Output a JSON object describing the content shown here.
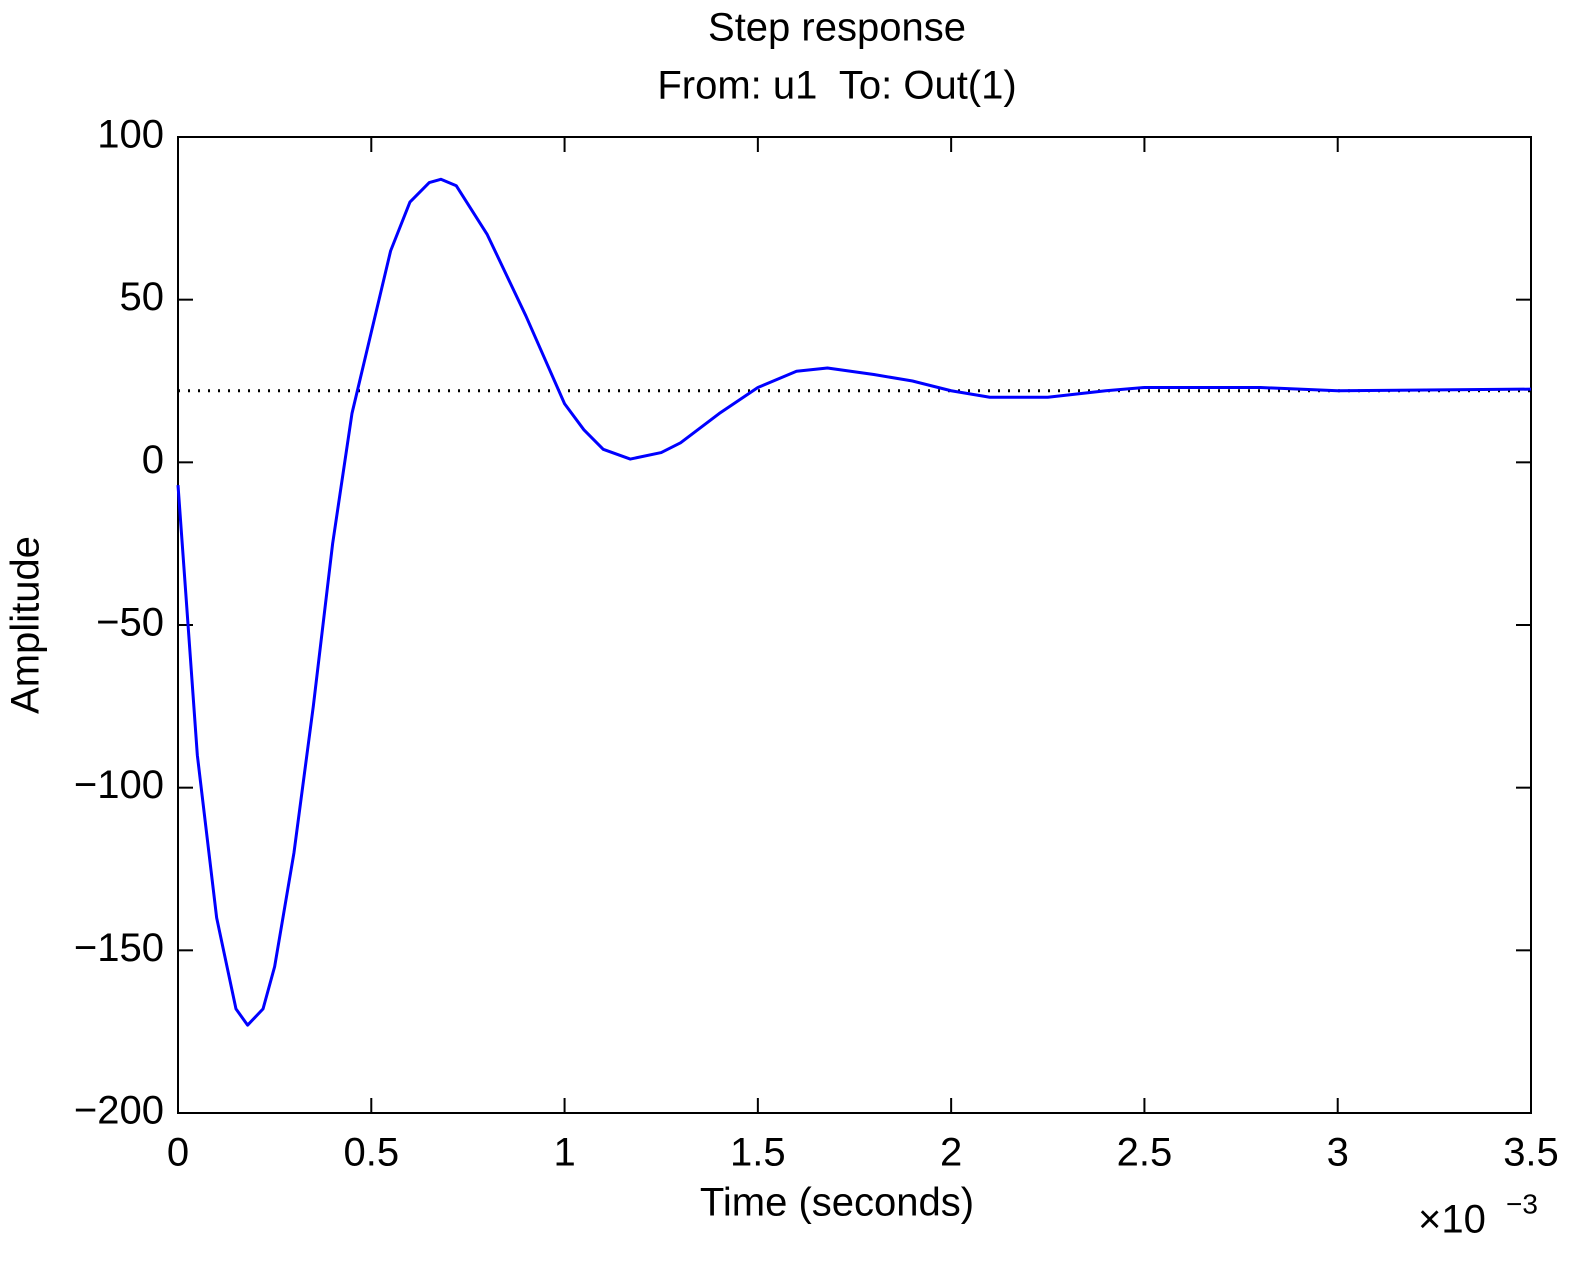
{
  "chart_data": {
    "type": "line",
    "title": "Step response",
    "subtitle": "From: u1  To: Out(1)",
    "x_label": "Time (seconds)",
    "y_label": "Amplitude",
    "x_scale_base": "×10",
    "x_scale_exponent": "−3",
    "xlim": [
      0,
      3.5
    ],
    "xticks": [
      0,
      0.5,
      1,
      1.5,
      2,
      2.5,
      3,
      3.5
    ],
    "ylim": [
      -200,
      100
    ],
    "yticks": [
      {
        "value": -200,
        "label": "−200"
      },
      {
        "value": -150,
        "label": "−150"
      },
      {
        "value": -100,
        "label": "−100"
      },
      {
        "value": -50,
        "label": "−50"
      },
      0,
      50,
      100
    ],
    "grid": false,
    "reference_line": {
      "value": 22,
      "color": "#000000",
      "style": "dotted"
    },
    "x": [
      0,
      0.02,
      0.05,
      0.1,
      0.15,
      0.18,
      0.22,
      0.25,
      0.3,
      0.35,
      0.4,
      0.45,
      0.5,
      0.55,
      0.6,
      0.65,
      0.68,
      0.72,
      0.8,
      0.9,
      1.0,
      1.05,
      1.1,
      1.17,
      1.25,
      1.3,
      1.4,
      1.5,
      1.6,
      1.68,
      1.8,
      1.9,
      2.0,
      2.1,
      2.25,
      2.4,
      2.5,
      2.8,
      3.0,
      3.5
    ],
    "series": [
      {
        "name": "Out(1)",
        "color": "#0000ff",
        "values": [
          -7,
          -40,
          -90,
          -140,
          -168,
          -173,
          -168,
          -155,
          -120,
          -75,
          -25,
          15,
          40,
          65,
          80,
          86,
          87,
          85,
          70,
          45,
          18,
          10,
          4,
          1,
          3,
          6,
          15,
          23,
          28,
          29,
          27,
          25,
          22,
          20,
          20,
          22,
          23,
          23,
          22,
          22.5
        ]
      }
    ]
  }
}
